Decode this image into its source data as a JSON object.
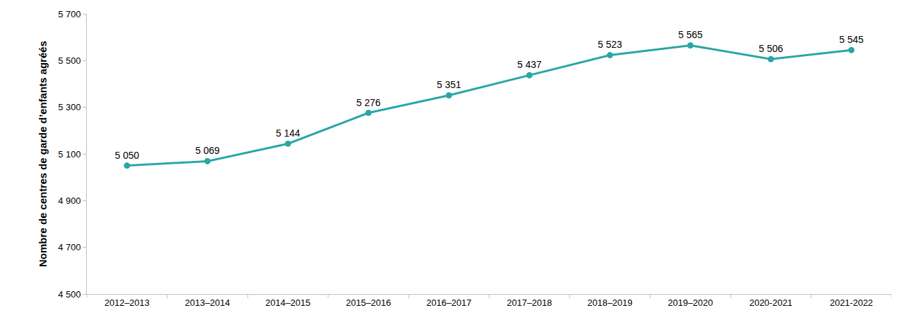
{
  "chart_data": {
    "type": "line",
    "y_label": "Nombre de centres de garde d’enfants agréés",
    "categories": [
      "2012–2013",
      "2013–2014",
      "2014–2015",
      "2015–2016",
      "2016–2017",
      "2017–2018",
      "2018–2019",
      "2019–2020",
      "2020-2021",
      "2021-2022"
    ],
    "values": [
      5050,
      5069,
      5144,
      5276,
      5351,
      5437,
      5523,
      5565,
      5506,
      5545
    ],
    "value_labels": [
      "5 050",
      "5 069",
      "5 144",
      "5 276",
      "5 351",
      "5 437",
      "5 523",
      "5 565",
      "5 506",
      "5 545"
    ],
    "color": "#2aa6a6",
    "marker": "circle",
    "line_style": "solid",
    "data_labels": true,
    "grid": false,
    "ylim": [
      4500,
      5700
    ],
    "yticks": [
      {
        "value": 4500,
        "label": "4 500"
      },
      {
        "value": 4700,
        "label": "4 700"
      },
      {
        "value": 4900,
        "label": "4 900"
      },
      {
        "value": 5100,
        "label": "5 100"
      },
      {
        "value": 5300,
        "label": "5 300"
      },
      {
        "value": 5500,
        "label": "5 500"
      },
      {
        "value": 5700,
        "label": "5 700"
      }
    ]
  }
}
